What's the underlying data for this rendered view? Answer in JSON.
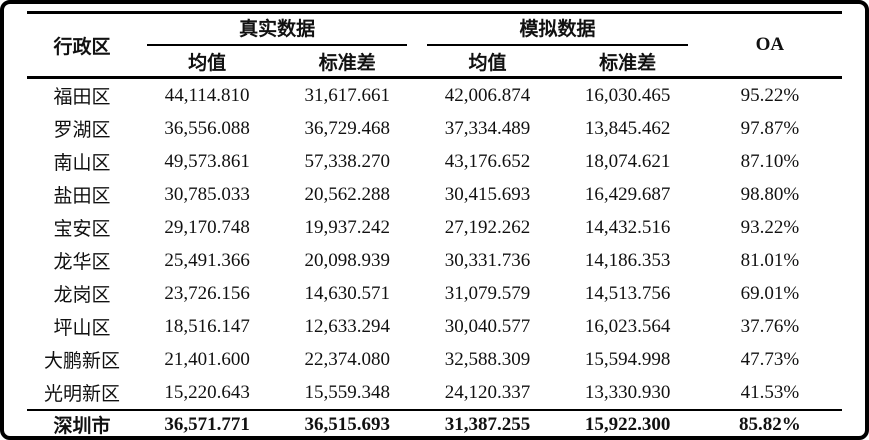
{
  "table": {
    "headers": {
      "district": "行政区",
      "group_real": "真实数据",
      "group_sim": "模拟数据",
      "mean": "均值",
      "std": "标准差",
      "oa": "OA"
    },
    "rows": [
      {
        "district": "福田区",
        "real_mean": "44,114.810",
        "real_std": "31,617.661",
        "sim_mean": "42,006.874",
        "sim_std": "16,030.465",
        "oa": "95.22%"
      },
      {
        "district": "罗湖区",
        "real_mean": "36,556.088",
        "real_std": "36,729.468",
        "sim_mean": "37,334.489",
        "sim_std": "13,845.462",
        "oa": "97.87%"
      },
      {
        "district": "南山区",
        "real_mean": "49,573.861",
        "real_std": "57,338.270",
        "sim_mean": "43,176.652",
        "sim_std": "18,074.621",
        "oa": "87.10%"
      },
      {
        "district": "盐田区",
        "real_mean": "30,785.033",
        "real_std": "20,562.288",
        "sim_mean": "30,415.693",
        "sim_std": "16,429.687",
        "oa": "98.80%"
      },
      {
        "district": "宝安区",
        "real_mean": "29,170.748",
        "real_std": "19,937.242",
        "sim_mean": "27,192.262",
        "sim_std": "14,432.516",
        "oa": "93.22%"
      },
      {
        "district": "龙华区",
        "real_mean": "25,491.366",
        "real_std": "20,098.939",
        "sim_mean": "30,331.736",
        "sim_std": "14,186.353",
        "oa": "81.01%"
      },
      {
        "district": "龙岗区",
        "real_mean": "23,726.156",
        "real_std": "14,630.571",
        "sim_mean": "31,079.579",
        "sim_std": "14,513.756",
        "oa": "69.01%"
      },
      {
        "district": "坪山区",
        "real_mean": "18,516.147",
        "real_std": "12,633.294",
        "sim_mean": "30,040.577",
        "sim_std": "16,023.564",
        "oa": "37.76%"
      },
      {
        "district": "大鹏新区",
        "real_mean": "21,401.600",
        "real_std": "22,374.080",
        "sim_mean": "32,588.309",
        "sim_std": "15,594.998",
        "oa": "47.73%"
      },
      {
        "district": "光明新区",
        "real_mean": "15,220.643",
        "real_std": "15,559.348",
        "sim_mean": "24,120.337",
        "sim_std": "13,330.930",
        "oa": "41.53%"
      }
    ],
    "total": {
      "district": "深圳市",
      "real_mean": "36,571.771",
      "real_std": "36,515.693",
      "sim_mean": "31,387.255",
      "sim_std": "15,922.300",
      "oa": "85.82%"
    }
  }
}
